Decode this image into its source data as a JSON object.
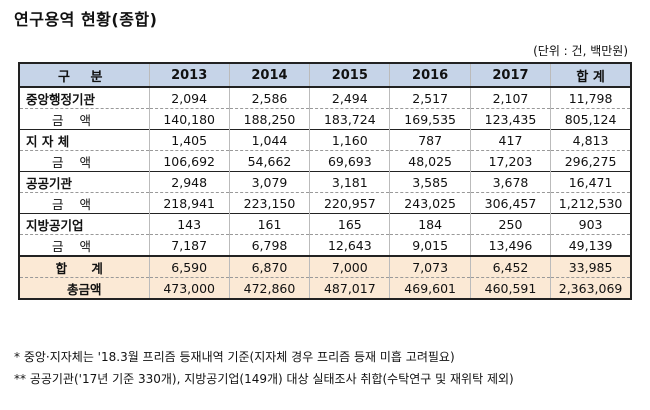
{
  "title": "연구용역 현황(종합)",
  "unit": "(단위 : 건, 백만원)",
  "headers": [
    "구  분",
    "2013",
    "2014",
    "2015",
    "2016",
    "2017",
    "합 계"
  ],
  "rows": [
    {
      "label": "중앙행정기관",
      "values": [
        "2,094",
        "2,586",
        "2,494",
        "2,517",
        "2,107",
        "11,798"
      ],
      "sub_label": "금 액",
      "sub_values": [
        "140,180",
        "188,250",
        "183,724",
        "169,535",
        "123,435",
        "805,124"
      ]
    },
    {
      "label": "지 자 체",
      "values": [
        "1,405",
        "1,044",
        "1,160",
        "787",
        "417",
        "4,813"
      ],
      "sub_label": "금 액",
      "sub_values": [
        "106,692",
        "54,662",
        "69,693",
        "48,025",
        "17,203",
        "296,275"
      ]
    },
    {
      "label": "공공기관",
      "values": [
        "2,948",
        "3,079",
        "3,181",
        "3,585",
        "3,678",
        "16,471"
      ],
      "sub_label": "금 액",
      "sub_values": [
        "218,941",
        "223,150",
        "220,957",
        "243,025",
        "306,457",
        "1,212,530"
      ]
    },
    {
      "label": "지방공기업",
      "values": [
        "143",
        "161",
        "165",
        "184",
        "250",
        "903"
      ],
      "sub_label": "금 액",
      "sub_values": [
        "7,187",
        "6,798",
        "12,643",
        "9,015",
        "13,496",
        "49,139"
      ]
    }
  ],
  "total": {
    "label": "합 계",
    "values": [
      "6,590",
      "6,870",
      "7,000",
      "7,073",
      "6,452",
      "33,985"
    ],
    "sub_label": "총금액",
    "sub_values": [
      "473,000",
      "472,860",
      "487,017",
      "469,601",
      "460,591",
      "2,363,069"
    ]
  },
  "notes": [
    "* 중앙·지자체는 '18.3월 프리즘 등재내역 기준(지자체 경우 프리즘 등재 미흡 고려필요)",
    "** 공공기관('17년 기준 330개), 지방공기업(149개) 대상 실태조사 취합(수탁연구 및 재위탁 제외)"
  ]
}
